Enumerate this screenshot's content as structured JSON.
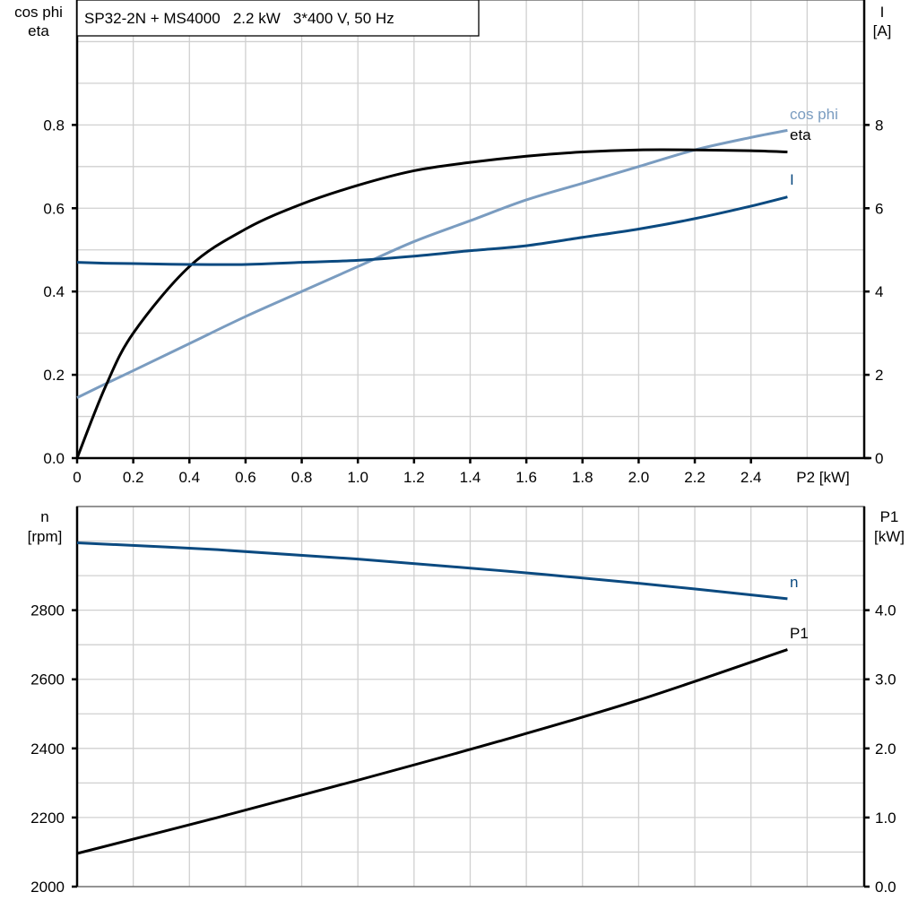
{
  "chart_data": [
    {
      "type": "line",
      "title": "SP32-2N + MS4000   2.2 kW   3*400 V, 50 Hz",
      "xlabel": "P2 [kW]",
      "ylabel_left": [
        "cos phi",
        "eta"
      ],
      "ylabel_right": [
        "I",
        "[A]"
      ],
      "xlim": [
        0,
        2.8
      ],
      "ylim_left": [
        0,
        1.1
      ],
      "ylim_right": [
        0,
        11
      ],
      "grid": true,
      "x_ticks": [
        "0",
        "0.2",
        "0.4",
        "0.6",
        "0.8",
        "1.0",
        "1.2",
        "1.4",
        "1.6",
        "1.8",
        "2.0",
        "2.2",
        "2.4"
      ],
      "y_ticks_left": [
        "0.0",
        "0.2",
        "0.4",
        "0.6",
        "0.8"
      ],
      "y_ticks_right": [
        "0",
        "2",
        "4",
        "6",
        "8"
      ],
      "x": [
        0,
        0.1,
        0.2,
        0.4,
        0.6,
        0.8,
        1.0,
        1.2,
        1.4,
        1.6,
        1.8,
        2.0,
        2.2,
        2.4,
        2.53
      ],
      "series": [
        {
          "name": "cos phi",
          "axis": "left",
          "color": "#7a9cc0",
          "values": [
            0.145,
            0.178,
            0.21,
            0.275,
            0.34,
            0.4,
            0.46,
            0.52,
            0.57,
            0.62,
            0.66,
            0.7,
            0.74,
            0.77,
            0.787
          ]
        },
        {
          "name": "eta",
          "axis": "left",
          "color": "#000000",
          "values": [
            0.0,
            0.17,
            0.3,
            0.46,
            0.55,
            0.61,
            0.655,
            0.69,
            0.71,
            0.725,
            0.735,
            0.74,
            0.74,
            0.738,
            0.735
          ]
        },
        {
          "name": "I",
          "axis": "right",
          "color": "#0b4a80",
          "values": [
            4.7,
            4.68,
            4.67,
            4.65,
            4.65,
            4.7,
            4.75,
            4.85,
            4.98,
            5.1,
            5.3,
            5.5,
            5.75,
            6.05,
            6.27
          ]
        }
      ]
    },
    {
      "type": "line",
      "xlim": [
        0,
        2.8
      ],
      "ylabel_left": [
        "n",
        "[rpm]"
      ],
      "ylabel_right": [
        "P1",
        "[kW]"
      ],
      "ylim_left": [
        2000,
        3100
      ],
      "ylim_right": [
        0,
        5.5
      ],
      "grid": true,
      "y_ticks_left": [
        "2000",
        "2200",
        "2400",
        "2600",
        "2800"
      ],
      "y_ticks_right": [
        "0.0",
        "1.0",
        "2.0",
        "3.0",
        "4.0"
      ],
      "x": [
        0,
        0.5,
        1.0,
        1.5,
        2.0,
        2.53
      ],
      "series": [
        {
          "name": "n",
          "axis": "left",
          "color": "#0b4a80",
          "values": [
            2995,
            2975,
            2948,
            2915,
            2878,
            2833
          ]
        },
        {
          "name": "P1",
          "axis": "right",
          "color": "#000000",
          "values": [
            0.48,
            1.0,
            1.54,
            2.1,
            2.7,
            3.43
          ]
        }
      ]
    }
  ]
}
